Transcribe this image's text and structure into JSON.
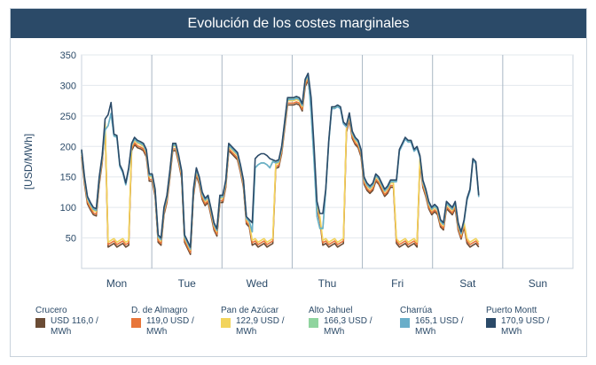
{
  "title": "Evolución de los costes marginales",
  "chart_data": {
    "type": "line",
    "ylabel": "[USD/MWh]",
    "ylim": [
      0,
      350
    ],
    "yticks": [
      50,
      100,
      150,
      200,
      250,
      300,
      350
    ],
    "days": [
      "Mon",
      "Tue",
      "Wed",
      "Thu",
      "Fri",
      "Sat",
      "Sun"
    ],
    "hours_per_day": 24,
    "grid": true,
    "legend_position": "bottom",
    "series": [
      {
        "name": "Crucero",
        "value_label": "USD 116,0 / MWh",
        "color": "#6b4c35"
      },
      {
        "name": "D. de Almagro",
        "value_label": "119,0 USD / MWh",
        "color": "#e8763a"
      },
      {
        "name": "Pan de Azúcar",
        "value_label": "122,9 USD / MWh",
        "color": "#f2d45c"
      },
      {
        "name": "Alto Jahuel",
        "value_label": "166,3 USD / MWh",
        "color": "#8fd49e"
      },
      {
        "name": "Charrúa",
        "value_label": "165,1 USD / MWh",
        "color": "#6aaec9"
      },
      {
        "name": "Puerto Montt",
        "value_label": "170,9 USD / MWh",
        "color": "#2b4a68"
      }
    ],
    "values_by_group": {
      "south": [
        195,
        150,
        118,
        108,
        100,
        98,
        150,
        185,
        245,
        252,
        272,
        220,
        218,
        170,
        160,
        140,
        165,
        205,
        215,
        210,
        208,
        205,
        195,
        155,
        155,
        130,
        55,
        50,
        100,
        120,
        160,
        205,
        205,
        185,
        160,
        55,
        45,
        35,
        130,
        165,
        150,
        125,
        115,
        120,
        98,
        75,
        65,
        120,
        120,
        145,
        205,
        200,
        195,
        190,
        170,
        145,
        85,
        80,
        75,
        180,
        185,
        188,
        188,
        185,
        180,
        178,
        176,
        178,
        200,
        240,
        280,
        280,
        280,
        282,
        280,
        270,
        310,
        320,
        280,
        200,
        110,
        90,
        90,
        130,
        210,
        265,
        265,
        268,
        265,
        240,
        235,
        255,
        225,
        215,
        210,
        195,
        150,
        140,
        135,
        140,
        155,
        150,
        140,
        130,
        135,
        145,
        145,
        145,
        195,
        205,
        215,
        210,
        210,
        195,
        200,
        185,
        145,
        130,
        110,
        100,
        105,
        100,
        80,
        75,
        110,
        105,
        100,
        110,
        75,
        60,
        80,
        115,
        130,
        180,
        175,
        120
      ]
    }
  }
}
